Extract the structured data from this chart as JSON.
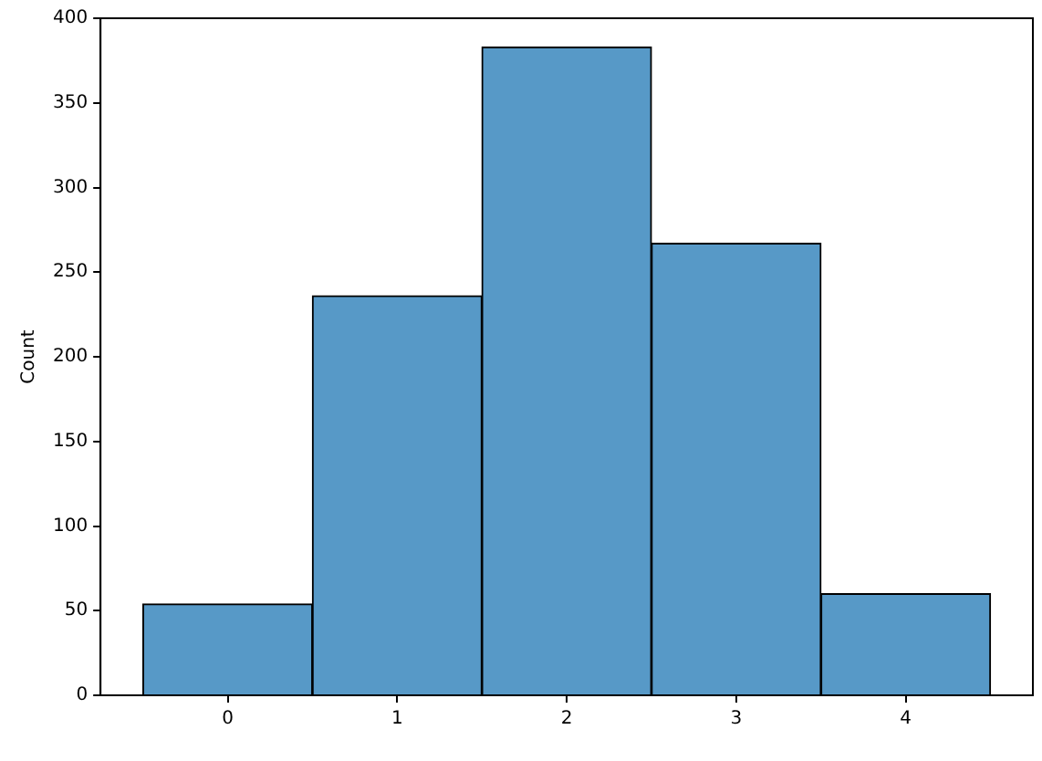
{
  "chart_data": {
    "type": "histogram",
    "ylabel": "Count",
    "bins": [
      -0.5,
      0.5,
      1.5,
      2.5,
      3.5,
      4.5
    ],
    "values": [
      54,
      236,
      383,
      267,
      60
    ],
    "color": "#5799c7",
    "xlim": [
      -0.75,
      4.75
    ],
    "xticks": [
      0,
      1,
      2,
      3,
      4
    ],
    "ylim": [
      0,
      400
    ],
    "yticks": [
      0,
      50,
      100,
      150,
      200,
      250,
      300,
      350,
      400
    ],
    "grid": false,
    "legend": false
  }
}
